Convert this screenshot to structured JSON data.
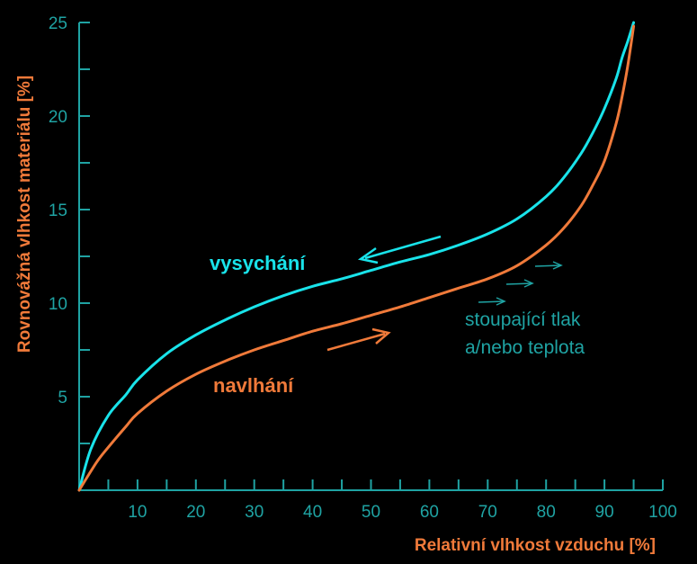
{
  "chart_data": {
    "type": "line",
    "xlabel": "Relativní vlhkost vzduchu [%]",
    "ylabel": "Rovnovážná vlhkost materiálu  [%]",
    "xlim": [
      0,
      100
    ],
    "ylim": [
      0,
      25
    ],
    "x_ticks": [
      10,
      20,
      30,
      40,
      50,
      60,
      70,
      80,
      90,
      100
    ],
    "y_ticks": [
      5,
      10,
      15,
      20,
      25
    ],
    "grid": false,
    "series": [
      {
        "name": "vysychání",
        "color": "#19e3ea",
        "x": [
          0,
          2,
          5,
          8,
          10,
          15,
          20,
          25,
          30,
          35,
          40,
          45,
          50,
          55,
          60,
          65,
          70,
          75,
          80,
          83,
          86,
          88,
          90,
          92,
          93,
          94,
          95
        ],
        "y": [
          0,
          2.2,
          4.0,
          5.1,
          5.9,
          7.3,
          8.3,
          9.1,
          9.8,
          10.4,
          10.9,
          11.3,
          11.75,
          12.2,
          12.6,
          13.1,
          13.7,
          14.5,
          15.7,
          16.7,
          18.0,
          19.1,
          20.4,
          22.0,
          23.1,
          24.0,
          25.0
        ]
      },
      {
        "name": "navlhání",
        "color": "#f07a3a",
        "x": [
          0,
          3,
          5,
          8,
          10,
          15,
          20,
          25,
          30,
          35,
          40,
          45,
          50,
          55,
          60,
          65,
          70,
          75,
          80,
          83,
          86,
          88,
          90,
          92,
          93,
          94,
          95
        ],
        "y": [
          0,
          1.5,
          2.3,
          3.4,
          4.1,
          5.3,
          6.2,
          6.9,
          7.5,
          8.0,
          8.5,
          8.9,
          9.35,
          9.8,
          10.3,
          10.8,
          11.3,
          12.0,
          13.1,
          14.0,
          15.2,
          16.3,
          17.6,
          19.6,
          21.0,
          22.7,
          24.8
        ]
      }
    ],
    "annotations": {
      "note_line1": "stoupající tlak",
      "note_line2": "a/nebo teplota"
    }
  }
}
